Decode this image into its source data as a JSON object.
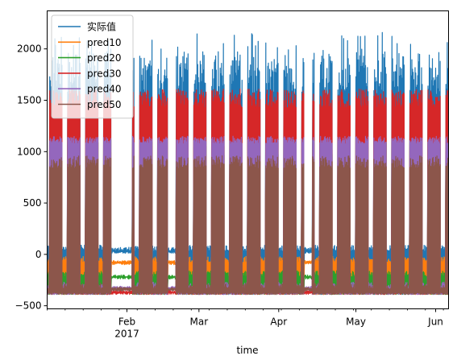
{
  "chart_data": {
    "type": "line",
    "title": "",
    "xlabel": "time",
    "ylabel": "",
    "x_range": [
      "2017-01-01",
      "2017-06-06"
    ],
    "ylim": [
      -530,
      2370
    ],
    "y_ticks": [
      -500,
      0,
      500,
      1000,
      1500,
      2000
    ],
    "x_ticks": [
      {
        "date": "2017-02-01",
        "label": "Feb",
        "sublabel": "2017"
      },
      {
        "date": "2017-03-01",
        "label": "Mar",
        "sublabel": ""
      },
      {
        "date": "2017-04-01",
        "label": "Apr",
        "sublabel": ""
      },
      {
        "date": "2017-05-01",
        "label": "May",
        "sublabel": ""
      },
      {
        "date": "2017-06-01",
        "label": "Jun",
        "sublabel": ""
      }
    ],
    "grid": false,
    "legend_position": "top-left",
    "off_periods": [
      [
        "2017-01-26",
        "2017-02-03"
      ],
      [
        "2017-02-17",
        "2017-02-20"
      ],
      [
        "2017-04-11",
        "2017-04-14"
      ]
    ],
    "series": [
      {
        "name": "实际值",
        "color": "#1f77b4",
        "on_max": 1960,
        "on_min": 900,
        "off_level": 30
      },
      {
        "name": "pred10",
        "color": "#ff7f0e",
        "on_max": 1150,
        "on_min": 650,
        "off_level": -80
      },
      {
        "name": "pred20",
        "color": "#2ca02c",
        "on_max": 1150,
        "on_min": 650,
        "off_level": -220
      },
      {
        "name": "pred30",
        "color": "#d62728",
        "on_max": 1610,
        "on_min": 1150,
        "off_level": -370
      },
      {
        "name": "pred40",
        "color": "#9467bd",
        "on_max": 1150,
        "on_min": 960,
        "off_level": -330
      },
      {
        "name": "pred50",
        "color": "#8c564b",
        "on_max": 960,
        "on_min": 650,
        "off_level": -340
      }
    ]
  }
}
